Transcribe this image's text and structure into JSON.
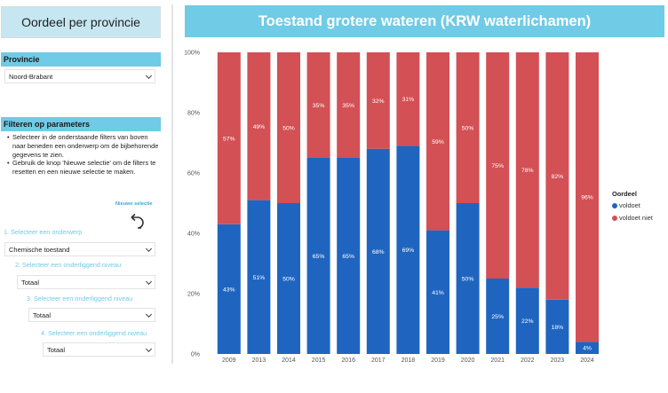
{
  "left_panel": {
    "title": "Oordeel per provincie",
    "provincie_header": "Provincie",
    "provincie_value": "Noord-Brabant",
    "filter_header": "Filteren op parameters",
    "notes": [
      "Selecteer in de onderstaande filters van boven naar beneden een onderwerp om de bijbehorende gegevens te zien.",
      "Gebruik de knop 'Nieuwe selectie' om de filters te resetten en een nieuwe selectie te maken."
    ],
    "new_selection_label": "Nieuwe selectie",
    "steps": [
      {
        "label": "1. Selecteer een onderwerp",
        "value": "Chemische toestand"
      },
      {
        "label": "2. Selecteer een onderliggend niveau",
        "value": "Totaal"
      },
      {
        "label": "3. Selecteer een onderliggend niveau",
        "value": "Totaal"
      },
      {
        "label": "4. Selecteer een onderliggend niveau",
        "value": "Totaal"
      }
    ]
  },
  "chart_title": "Toestand grotere wateren (KRW waterlichamen)",
  "legend": {
    "title": "Oordeel"
  },
  "colors": {
    "voldoet": "#1f65c0",
    "voldoet_niet": "#d35055"
  },
  "chart_data": {
    "type": "bar",
    "stacked": true,
    "categories": [
      "2009",
      "2013",
      "2014",
      "2015",
      "2016",
      "2017",
      "2018",
      "2019",
      "2020",
      "2021",
      "2022",
      "2023",
      "2024"
    ],
    "series": [
      {
        "name": "voldoet",
        "values": [
          43,
          51,
          50,
          65,
          65,
          68,
          69,
          41,
          50,
          25,
          22,
          18,
          4
        ]
      },
      {
        "name": "voldoet niet",
        "values": [
          57,
          49,
          50,
          35,
          35,
          32,
          31,
          59,
          50,
          75,
          78,
          82,
          96
        ]
      }
    ],
    "y_ticks": [
      "0%",
      "20%",
      "40%",
      "60%",
      "80%",
      "100%"
    ],
    "ylim": [
      0,
      100
    ],
    "legend_position": "right"
  }
}
